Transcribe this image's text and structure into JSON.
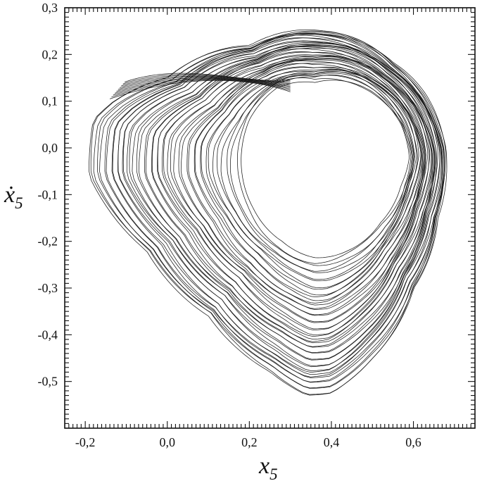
{
  "chart_data": {
    "type": "line",
    "title": "",
    "xlabel": "x",
    "xlabel_subscript": "5",
    "ylabel": "ẋ",
    "ylabel_subscript": "5",
    "xlim": [
      -0.25,
      0.75
    ],
    "ylim": [
      -0.6,
      0.3
    ],
    "grid": false,
    "x_ticks": [
      -0.2,
      0.0,
      0.2,
      0.4,
      0.6
    ],
    "x_tick_labels": [
      "-0,2",
      "0,0",
      "0,2",
      "0,4",
      "0,6"
    ],
    "y_ticks": [
      0.3,
      0.2,
      0.1,
      0.0,
      -0.1,
      -0.2,
      -0.3,
      -0.4,
      -0.5
    ],
    "y_tick_labels": [
      "0,3",
      "0,2",
      "0,1",
      "0,0",
      "-0,1",
      "-0,2",
      "-0,3",
      "-0,4",
      "-0,5"
    ],
    "series": [
      {
        "description": "phase-space trajectory (strange attractor), traced as successive loops; outermost and innermost loop outlines estimated from the figure",
        "color": "#1a1a1a",
        "outer_loop": [
          [
            0.38,
            0.25
          ],
          [
            0.55,
            0.18
          ],
          [
            0.63,
            0.11
          ],
          [
            0.68,
            0.0
          ],
          [
            0.66,
            -0.15
          ],
          [
            0.6,
            -0.3
          ],
          [
            0.5,
            -0.45
          ],
          [
            0.4,
            -0.525
          ],
          [
            0.34,
            -0.53
          ],
          [
            0.25,
            -0.48
          ],
          [
            0.1,
            -0.36
          ],
          [
            -0.05,
            -0.22
          ],
          [
            -0.19,
            -0.06
          ],
          [
            -0.18,
            0.06
          ],
          [
            -0.13,
            0.1
          ],
          [
            0.0,
            0.15
          ],
          [
            0.2,
            0.22
          ]
        ],
        "inner_loop": [
          [
            0.36,
            0.14
          ],
          [
            0.5,
            0.12
          ],
          [
            0.57,
            0.05
          ],
          [
            0.59,
            -0.02
          ],
          [
            0.57,
            -0.08
          ],
          [
            0.52,
            -0.16
          ],
          [
            0.44,
            -0.22
          ],
          [
            0.36,
            -0.235
          ],
          [
            0.28,
            -0.2
          ],
          [
            0.21,
            -0.13
          ],
          [
            0.18,
            -0.03
          ],
          [
            0.2,
            0.06
          ],
          [
            0.27,
            0.13
          ]
        ]
      }
    ]
  }
}
